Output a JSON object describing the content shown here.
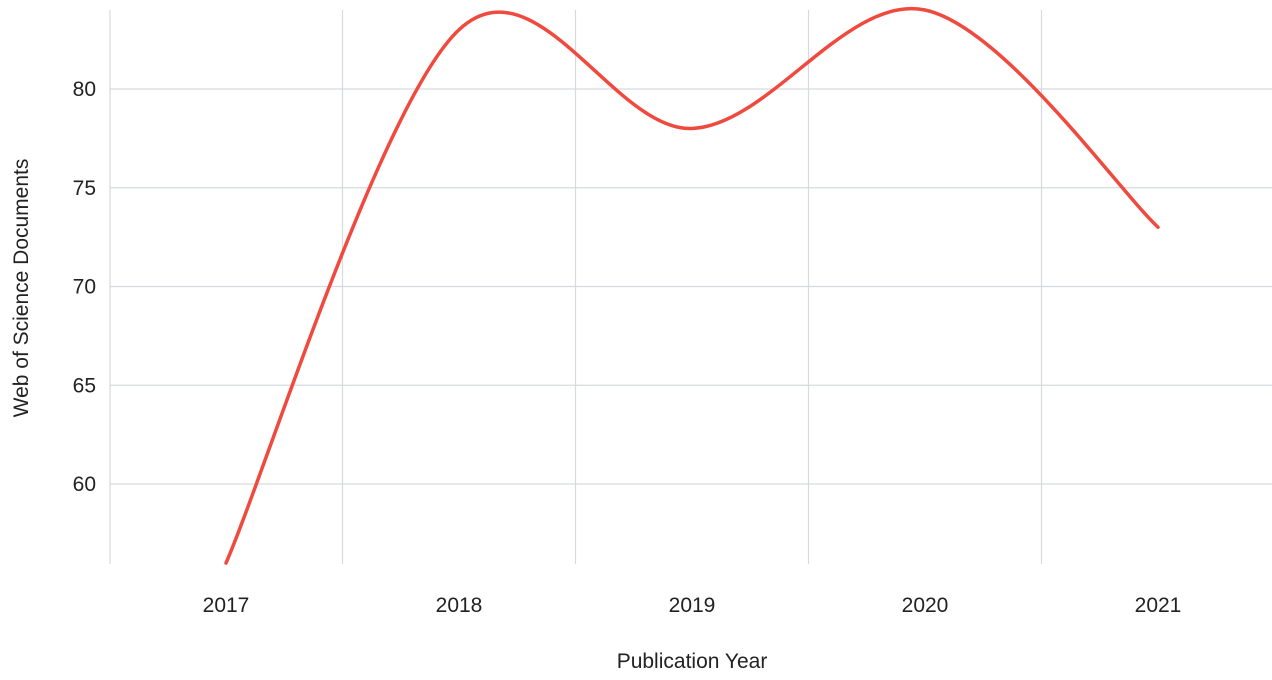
{
  "chart_data": {
    "type": "line",
    "xlabel": "Publication Year",
    "ylabel": "Web of Science Documents",
    "categories": [
      "2017",
      "2018",
      "2019",
      "2020",
      "2021"
    ],
    "series": [
      {
        "values": [
          56,
          83,
          78,
          84,
          73
        ]
      }
    ],
    "yticks": [
      60,
      65,
      70,
      75,
      80
    ],
    "ylim": [
      56,
      84
    ],
    "grid": true,
    "smooth": true,
    "line_color": "#f04a3e",
    "grid_color": "#d6dae0"
  }
}
